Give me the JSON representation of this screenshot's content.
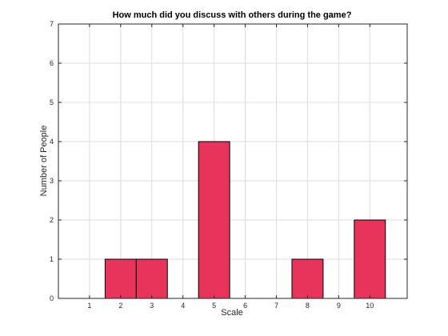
{
  "chart_data": {
    "type": "bar",
    "title": "How much did you discuss with others during the game?",
    "xlabel": "Scale",
    "ylabel": "Number of People",
    "x": [
      2,
      3,
      5,
      8,
      10
    ],
    "values": [
      1,
      1,
      4,
      1,
      2
    ],
    "xlim": [
      0,
      11.2
    ],
    "ylim": [
      0,
      7
    ],
    "xticks": [
      1,
      2,
      3,
      4,
      5,
      6,
      7,
      8,
      9,
      10
    ],
    "yticks": [
      0,
      1,
      2,
      3,
      4,
      5,
      6,
      7
    ],
    "grid": true,
    "bar_color": "#e8345a"
  }
}
